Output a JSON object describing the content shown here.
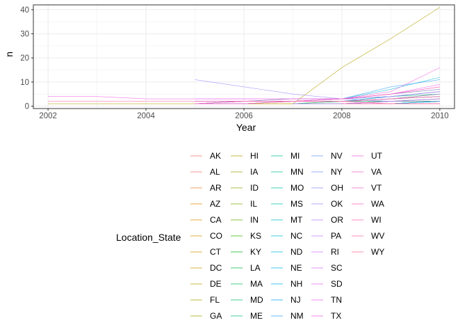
{
  "chart_data": {
    "type": "line",
    "xlabel": "Year",
    "ylabel": "n",
    "xlim": [
      2001.7,
      2010.3
    ],
    "ylim": [
      -1,
      42
    ],
    "xticks": [
      "2002",
      "2004",
      "2006",
      "2008",
      "2010"
    ],
    "yticks": [
      "0",
      "10",
      "20",
      "30",
      "40"
    ],
    "grid": true,
    "legend": {
      "title": "Location_State",
      "position": "bottom",
      "columns": 6,
      "rows": 11
    },
    "series": [
      {
        "name": "AK",
        "color": "#F8766D",
        "x": [
          2008,
          2009,
          2010
        ],
        "y": [
          1,
          1,
          2
        ]
      },
      {
        "name": "AL",
        "color": "#F2786C",
        "x": [
          2005,
          2006,
          2007,
          2008,
          2009,
          2010
        ],
        "y": [
          1,
          1,
          2,
          2,
          3,
          4
        ]
      },
      {
        "name": "AR",
        "color": "#EA8331",
        "x": [
          2008,
          2009,
          2010
        ],
        "y": [
          1,
          2,
          2
        ]
      },
      {
        "name": "AZ",
        "color": "#E58700",
        "x": [
          2005,
          2006,
          2007,
          2008,
          2009,
          2010
        ],
        "y": [
          1,
          1,
          1,
          2,
          3,
          5
        ]
      },
      {
        "name": "CA",
        "color": "#DE8C00",
        "x": [
          2005,
          2006,
          2007,
          2008,
          2009,
          2010
        ],
        "y": [
          2,
          2,
          3,
          3,
          5,
          7
        ]
      },
      {
        "name": "CO",
        "color": "#D89000",
        "x": [
          2005,
          2006,
          2007,
          2008,
          2009,
          2010
        ],
        "y": [
          1,
          2,
          2,
          2,
          3,
          4
        ]
      },
      {
        "name": "CT",
        "color": "#CD9600",
        "x": [
          2007,
          2008,
          2009,
          2010
        ],
        "y": [
          1,
          1,
          2,
          3
        ]
      },
      {
        "name": "DC",
        "color": "#C49A00",
        "x": [
          2008,
          2009,
          2010
        ],
        "y": [
          1,
          1,
          1
        ]
      },
      {
        "name": "DE",
        "color": "#B9A000",
        "x": [
          2008,
          2009,
          2010
        ],
        "y": [
          1,
          1,
          2
        ]
      },
      {
        "name": "FL",
        "color": "#ADA200",
        "x": [
          2005,
          2006,
          2007,
          2008,
          2009,
          2010
        ],
        "y": [
          1,
          2,
          2,
          3,
          4,
          6
        ]
      },
      {
        "name": "GA",
        "color": "#A3A500",
        "x": [
          2007,
          2008,
          2009,
          2010
        ],
        "y": [
          1,
          2,
          2,
          3
        ]
      },
      {
        "name": "HI",
        "color": "#B3A000",
        "x": [
          2002,
          2007,
          2008,
          2009,
          2010
        ],
        "y": [
          1,
          1,
          16,
          28,
          41
        ]
      },
      {
        "name": "IA",
        "color": "#9DA700",
        "x": [
          2008,
          2009,
          2010
        ],
        "y": [
          1,
          1,
          2
        ]
      },
      {
        "name": "ID",
        "color": "#8FAA00",
        "x": [
          2008,
          2009,
          2010
        ],
        "y": [
          1,
          1,
          2
        ]
      },
      {
        "name": "IL",
        "color": "#7CAE00",
        "x": [
          2005,
          2006,
          2007,
          2008,
          2009,
          2010
        ],
        "y": [
          1,
          1,
          2,
          2,
          3,
          5
        ]
      },
      {
        "name": "IN",
        "color": "#64B200",
        "x": [
          2007,
          2008,
          2009,
          2010
        ],
        "y": [
          1,
          1,
          2,
          3
        ]
      },
      {
        "name": "KS",
        "color": "#39B600",
        "x": [
          2008,
          2009,
          2010
        ],
        "y": [
          1,
          2,
          2
        ]
      },
      {
        "name": "KY",
        "color": "#00B81F",
        "x": [
          2008,
          2009,
          2010
        ],
        "y": [
          1,
          1,
          2
        ]
      },
      {
        "name": "LA",
        "color": "#00BA42",
        "x": [
          2007,
          2008,
          2009,
          2010
        ],
        "y": [
          1,
          1,
          2,
          2
        ]
      },
      {
        "name": "MA",
        "color": "#00BC59",
        "x": [
          2005,
          2006,
          2007,
          2008,
          2009,
          2010
        ],
        "y": [
          1,
          2,
          2,
          2,
          4,
          6
        ]
      },
      {
        "name": "MD",
        "color": "#00BE6C",
        "x": [
          2005,
          2006,
          2007,
          2008,
          2009,
          2010
        ],
        "y": [
          1,
          1,
          2,
          2,
          3,
          4
        ]
      },
      {
        "name": "ME",
        "color": "#00BF7D",
        "x": [
          2008,
          2009,
          2010
        ],
        "y": [
          1,
          1,
          1
        ]
      },
      {
        "name": "MI",
        "color": "#00C08B",
        "x": [
          2005,
          2006,
          2007,
          2008,
          2009,
          2010
        ],
        "y": [
          1,
          2,
          2,
          3,
          4,
          5
        ]
      },
      {
        "name": "MN",
        "color": "#00C19A",
        "x": [
          2005,
          2006,
          2007,
          2008,
          2009,
          2010
        ],
        "y": [
          1,
          1,
          2,
          2,
          3,
          4
        ]
      },
      {
        "name": "MO",
        "color": "#00C1A7",
        "x": [
          2007,
          2008,
          2009,
          2010
        ],
        "y": [
          1,
          2,
          2,
          3
        ]
      },
      {
        "name": "MS",
        "color": "#00C0B4",
        "x": [
          2008,
          2009,
          2010
        ],
        "y": [
          1,
          1,
          2
        ]
      },
      {
        "name": "MT",
        "color": "#00BFC4",
        "x": [
          2008,
          2009,
          2010
        ],
        "y": [
          1,
          1,
          1
        ]
      },
      {
        "name": "NC",
        "color": "#00BDD0",
        "x": [
          2005,
          2006,
          2007,
          2008,
          2009,
          2010
        ],
        "y": [
          1,
          2,
          2,
          3,
          7,
          12
        ]
      },
      {
        "name": "ND",
        "color": "#00BADE",
        "x": [
          2008,
          2009,
          2010
        ],
        "y": [
          1,
          1,
          1
        ]
      },
      {
        "name": "NE",
        "color": "#00B6EB",
        "x": [
          2008,
          2009,
          2010
        ],
        "y": [
          1,
          1,
          2
        ]
      },
      {
        "name": "NH",
        "color": "#00B0F6",
        "x": [
          2008,
          2009,
          2010
        ],
        "y": [
          1,
          1,
          2
        ]
      },
      {
        "name": "NJ",
        "color": "#00A9FF",
        "x": [
          2005,
          2006,
          2007,
          2008,
          2009,
          2010
        ],
        "y": [
          1,
          1,
          2,
          2,
          4,
          6
        ]
      },
      {
        "name": "NM",
        "color": "#35A2FF",
        "x": [
          2005,
          2006,
          2007,
          2008,
          2009,
          2010
        ],
        "y": [
          2,
          2,
          2,
          3,
          8,
          11
        ]
      },
      {
        "name": "NV",
        "color": "#619CFF",
        "x": [
          2007,
          2008,
          2009,
          2010
        ],
        "y": [
          1,
          1,
          2,
          3
        ]
      },
      {
        "name": "NY",
        "color": "#7E98FF",
        "x": [
          2005,
          2006,
          2007,
          2008,
          2009,
          2010
        ],
        "y": [
          2,
          2,
          3,
          3,
          5,
          7
        ]
      },
      {
        "name": "OH",
        "color": "#9590FF",
        "x": [
          2005,
          2006,
          2007,
          2008,
          2009,
          2010
        ],
        "y": [
          1,
          2,
          2,
          3,
          4,
          6
        ]
      },
      {
        "name": "OK",
        "color": "#A58AFF",
        "x": [
          2005,
          2006,
          2007,
          2008,
          2009,
          2010
        ],
        "y": [
          11,
          8,
          5,
          3,
          2,
          2
        ]
      },
      {
        "name": "OR",
        "color": "#B983FF",
        "x": [
          2005,
          2006,
          2007,
          2008,
          2009,
          2010
        ],
        "y": [
          1,
          1,
          2,
          2,
          3,
          5
        ]
      },
      {
        "name": "PA",
        "color": "#C77CFF",
        "x": [
          2005,
          2006,
          2007,
          2008,
          2009,
          2010
        ],
        "y": [
          3,
          3,
          3,
          3,
          4,
          6
        ]
      },
      {
        "name": "RI",
        "color": "#D376FF",
        "x": [
          2008,
          2009,
          2010
        ],
        "y": [
          1,
          1,
          1
        ]
      },
      {
        "name": "SC",
        "color": "#DE71F9",
        "x": [
          2007,
          2008,
          2009,
          2010
        ],
        "y": [
          1,
          1,
          2,
          3
        ]
      },
      {
        "name": "SD",
        "color": "#E76BF3",
        "x": [
          2008,
          2009,
          2010
        ],
        "y": [
          1,
          1,
          1
        ]
      },
      {
        "name": "TN",
        "color": "#EF67EB",
        "x": [
          2005,
          2006,
          2007,
          2008,
          2009,
          2010
        ],
        "y": [
          1,
          2,
          2,
          3,
          5,
          9
        ]
      },
      {
        "name": "TX",
        "color": "#F564E3",
        "x": [
          2002,
          2003,
          2004,
          2005,
          2006,
          2007,
          2008,
          2009,
          2010
        ],
        "y": [
          4,
          4,
          3,
          3,
          3,
          3,
          3,
          6,
          16
        ]
      },
      {
        "name": "UT",
        "color": "#FA62DB",
        "x": [
          2005,
          2006,
          2007,
          2008,
          2009,
          2010
        ],
        "y": [
          1,
          1,
          2,
          2,
          3,
          4
        ]
      },
      {
        "name": "VA",
        "color": "#FC61D5",
        "x": [
          2005,
          2006,
          2007,
          2008,
          2009,
          2010
        ],
        "y": [
          2,
          2,
          2,
          3,
          5,
          8
        ]
      },
      {
        "name": "VT",
        "color": "#FE61CC",
        "x": [
          2008,
          2009,
          2010
        ],
        "y": [
          1,
          1,
          1
        ]
      },
      {
        "name": "WA",
        "color": "#FF62BC",
        "x": [
          2005,
          2006,
          2007,
          2008,
          2009,
          2010
        ],
        "y": [
          1,
          2,
          2,
          3,
          5,
          8
        ]
      },
      {
        "name": "WI",
        "color": "#FF64B0",
        "x": [
          2005,
          2006,
          2007,
          2008,
          2009,
          2010
        ],
        "y": [
          1,
          1,
          2,
          2,
          3,
          4
        ]
      },
      {
        "name": "WV",
        "color": "#FF67A4",
        "x": [
          2002,
          2008,
          2009,
          2010
        ],
        "y": [
          2,
          2,
          1,
          1
        ]
      },
      {
        "name": "WY",
        "color": "#FF6C91",
        "x": [
          2008,
          2009,
          2010
        ],
        "y": [
          1,
          1,
          1
        ]
      }
    ]
  }
}
